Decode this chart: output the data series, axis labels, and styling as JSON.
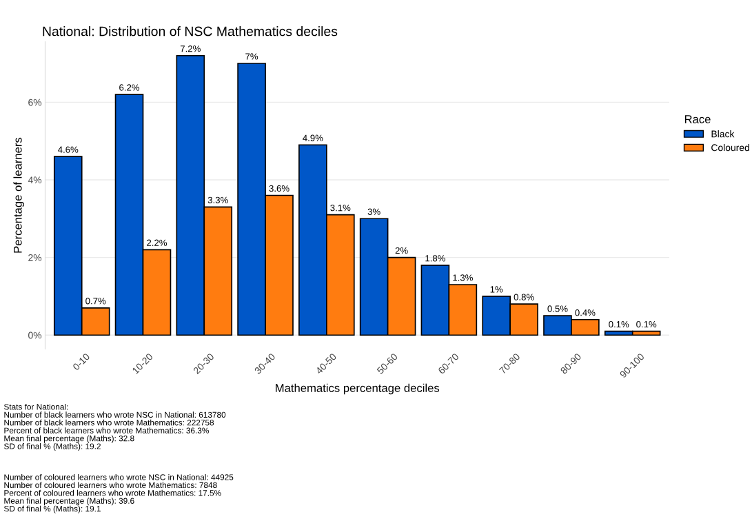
{
  "chart_data": {
    "type": "bar",
    "title": "National: Distribution of NSC Mathematics deciles",
    "xlabel": "Mathematics percentage deciles",
    "ylabel": "Percentage of learners",
    "legend_title": "Race",
    "categories": [
      "0-10",
      "10-20",
      "20-30",
      "30-40",
      "40-50",
      "50-60",
      "60-70",
      "70-80",
      "80-90",
      "90-100"
    ],
    "series": [
      {
        "name": "Black",
        "color": "#0057c8",
        "values": [
          4.6,
          6.2,
          7.2,
          7,
          4.9,
          3,
          1.8,
          1,
          0.5,
          0.1
        ],
        "value_labels": [
          "4.6%",
          "6.2%",
          "7.2%",
          "7%",
          "4.9%",
          "3%",
          "1.8%",
          "1%",
          "0.5%",
          "0.1%"
        ]
      },
      {
        "name": "Coloured",
        "color": "#ff7c10",
        "values": [
          0.7,
          2.2,
          3.3,
          3.6,
          3.1,
          2,
          1.3,
          0.8,
          0.4,
          0.1
        ],
        "value_labels": [
          "0.7%",
          "2.2%",
          "3.3%",
          "3.6%",
          "3.1%",
          "2%",
          "1.3%",
          "0.8%",
          "0.4%",
          "0.1%"
        ]
      }
    ],
    "ylim": [
      -0.36,
      7.56
    ],
    "yticks": [
      {
        "value": 0,
        "label": "0%"
      },
      {
        "value": 2,
        "label": "2%"
      },
      {
        "value": 4,
        "label": "4%"
      },
      {
        "value": 6,
        "label": "6%"
      }
    ],
    "grid": "y",
    "legend": "right",
    "annotations": [
      "Stats for National:\nNumber of black learners who wrote NSC in National: 613780\nNumber of black learners who wrote Mathematics: 222758\nPercent of black learners who wrote Mathematics: 36.3%\nMean final percentage (Maths): 32.8\nSD of final % (Maths): 19.2",
      "Number of coloured learners who wrote NSC in National: 44925\nNumber of coloured learners who wrote Mathematics: 7848\nPercent of coloured learners who wrote Mathematics: 17.5%\nMean final percentage (Maths): 39.6\nSD of final % (Maths): 19.1"
    ]
  }
}
